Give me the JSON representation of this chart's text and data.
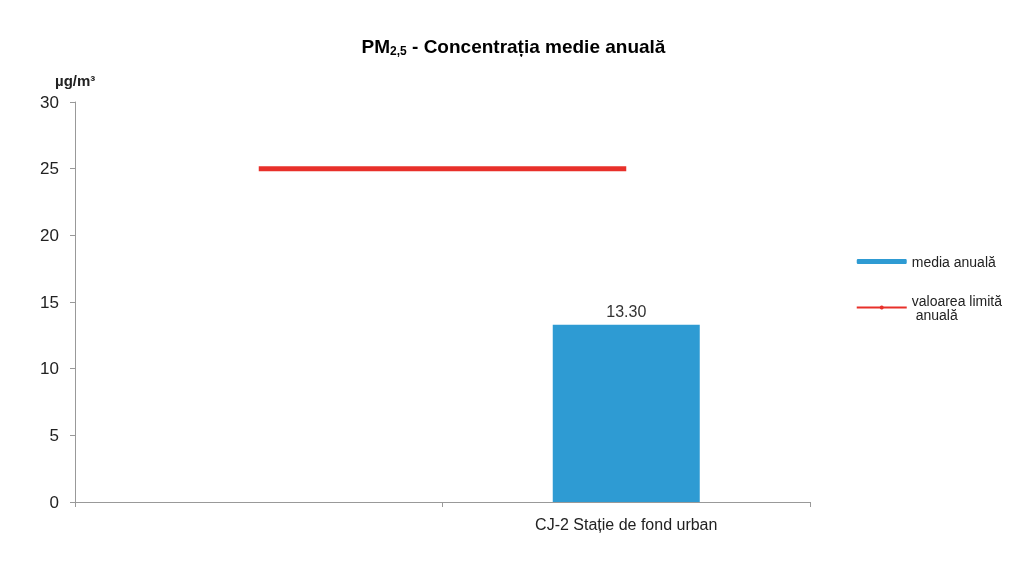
{
  "chart_data": {
    "type": "bar",
    "title": "PM$_{2,5}$ - Concentrația medie anuală",
    "ylabel": "µg/m³",
    "categories": [
      null,
      "CJ-2 Stație de fond urban"
    ],
    "series": [
      {
        "name": "media anuală",
        "color": "#2e9bd3",
        "values": [
          null,
          13.3
        ],
        "value_labels": [
          null,
          "13.30"
        ]
      },
      {
        "name": "valoarea limită anuală",
        "type": "line",
        "color": "#e8302a",
        "values": [
          25,
          25
        ]
      }
    ],
    "ylim": [
      0,
      30
    ],
    "yticks": [
      0,
      5,
      10,
      15,
      20,
      25,
      30
    ],
    "grid": false,
    "legend": "right",
    "marker": "none"
  }
}
